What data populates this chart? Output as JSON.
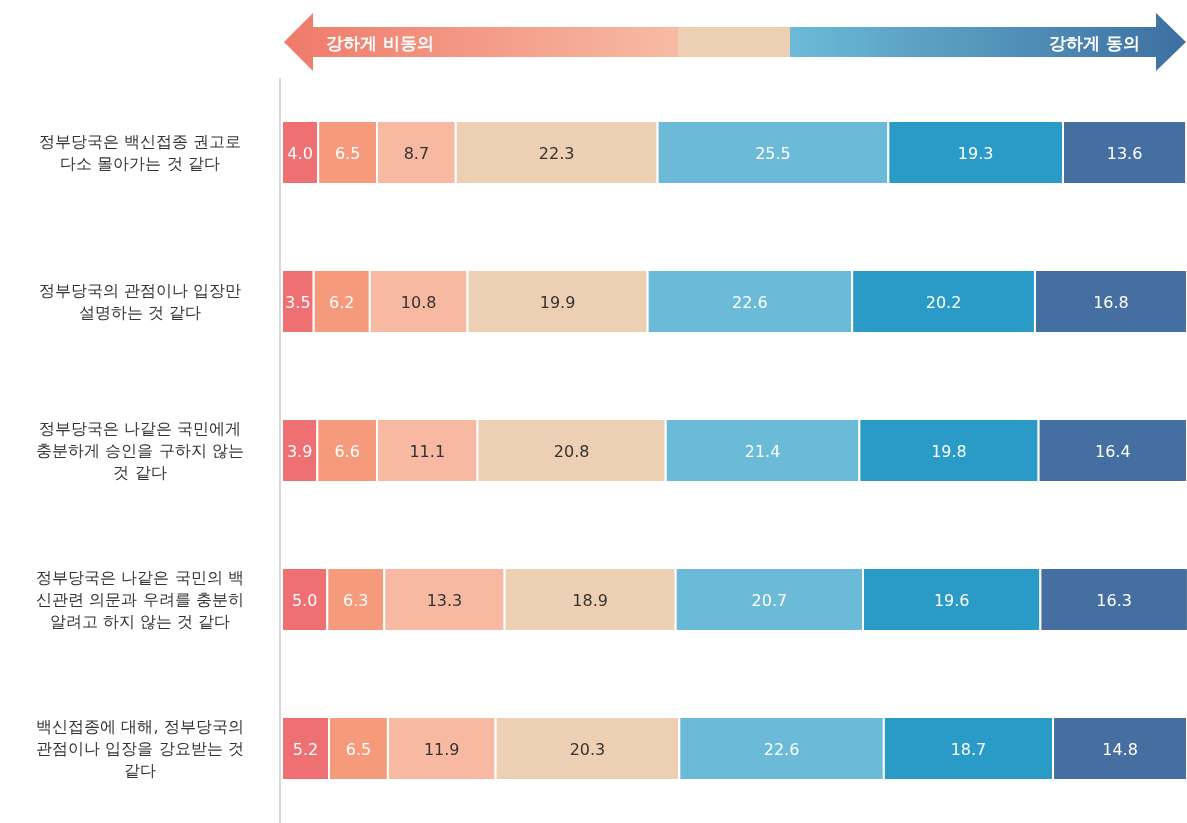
{
  "chart_data": {
    "type": "bar",
    "orientation": "horizontal",
    "stacked": true,
    "data_labels": true,
    "xlim": [
      0,
      100
    ],
    "categories": [
      "정부당국은 백신접종 권고로 다소 몰아가는 것 같다",
      "정부당국의 관점이나 입장만 설명하는 것 같다",
      "정부당국은 나같은  국민에게 충분하게 승인을 구하지 않는 것 같다",
      "정부당국은 나같은 국민의 백신관련 의문과 우려를 충분히 알려고 하지 않는 것 같다",
      "백신접종에 대해, 정부당국의 관점이나 입장을 강요받는 것 같다"
    ],
    "series": [
      {
        "color": "#ee7073",
        "values": [
          4.0,
          3.5,
          3.9,
          5.0,
          5.2
        ],
        "value_labels": [
          "4.0",
          "3.5",
          "3.9",
          "5.0",
          "5.2"
        ]
      },
      {
        "color": "#f59a7b",
        "values": [
          6.5,
          6.2,
          6.6,
          6.3,
          6.5
        ]
      },
      {
        "color": "#f8b9a2",
        "values": [
          8.7,
          10.8,
          11.1,
          13.3,
          11.9
        ]
      },
      {
        "color": "#edcfb3",
        "values": [
          22.3,
          19.9,
          20.8,
          18.9,
          20.3
        ]
      },
      {
        "color": "#6bbad7",
        "values": [
          25.5,
          22.6,
          21.4,
          20.7,
          22.6
        ]
      },
      {
        "color": "#2a9bc6",
        "values": [
          19.3,
          20.2,
          19.8,
          19.6,
          18.7
        ]
      },
      {
        "color": "#456fa0",
        "values": [
          13.6,
          16.8,
          16.4,
          16.3,
          14.8
        ]
      }
    ],
    "annotations": [
      "강하게 비동의",
      "강하게 동의"
    ]
  }
}
